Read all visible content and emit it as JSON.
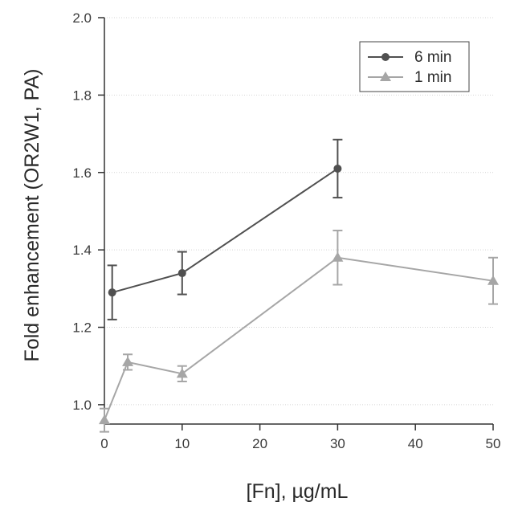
{
  "chart_data": {
    "type": "line",
    "title": "",
    "xlabel": "[Fn], µg/mL",
    "ylabel": "Fold enhancement (OR2W1, PA)",
    "xlim": [
      0,
      50
    ],
    "ylim": [
      0.95,
      2.0
    ],
    "x_ticks": [
      0,
      10,
      20,
      30,
      40,
      50
    ],
    "y_ticks": [
      1.0,
      1.2,
      1.4,
      1.6,
      1.8,
      2.0
    ],
    "x_tick_labels": [
      "0",
      "10",
      "20",
      "30",
      "40",
      "50"
    ],
    "y_tick_labels": [
      "1.0",
      "1.2",
      "1.4",
      "1.6",
      "1.8",
      "2.0"
    ],
    "grid": "horizontal dotted",
    "legend_position": "top-right",
    "series": [
      {
        "name": "6 min",
        "color": "#505050",
        "marker": "circle",
        "x": [
          1,
          10,
          30
        ],
        "y": [
          1.29,
          1.34,
          1.61
        ],
        "error": [
          0.07,
          0.055,
          0.075
        ]
      },
      {
        "name": "1 min",
        "color": "#a6a6a6",
        "marker": "triangle",
        "x": [
          0,
          3,
          10,
          30,
          50
        ],
        "y": [
          0.96,
          1.11,
          1.08,
          1.38,
          1.32
        ],
        "error": [
          0.03,
          0.02,
          0.02,
          0.07,
          0.06
        ]
      }
    ]
  }
}
